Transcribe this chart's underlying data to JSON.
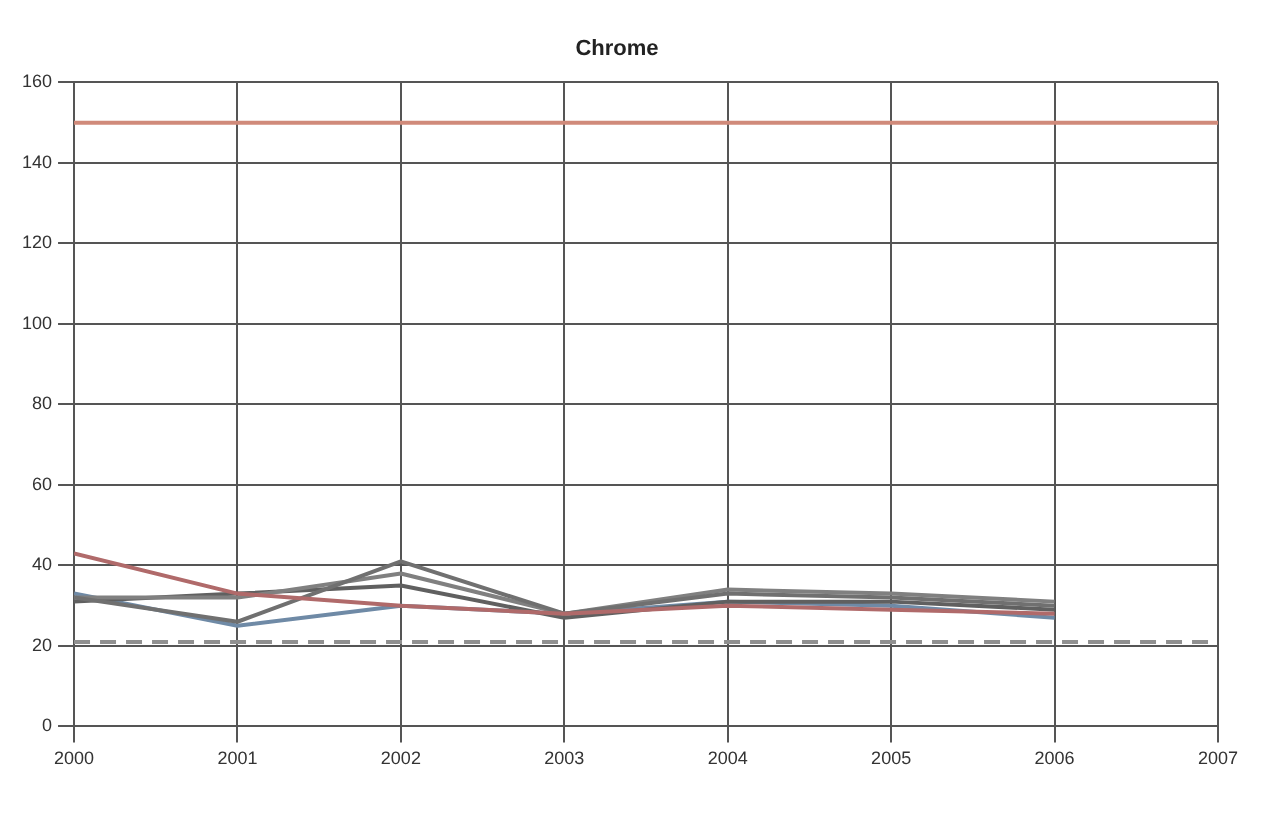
{
  "chart_data": {
    "type": "line",
    "title": "Chrome",
    "x": [
      2000,
      2001,
      2002,
      2003,
      2004,
      2005,
      2006
    ],
    "series": [
      {
        "color": "#b06a6a",
        "values": [
          43,
          33,
          30,
          28,
          30,
          29,
          28
        ]
      },
      {
        "color": "#707070",
        "values": [
          32,
          26,
          41,
          28,
          33,
          32,
          30
        ]
      },
      {
        "color": "#808080",
        "values": [
          32,
          32,
          38,
          28,
          34,
          33,
          31
        ]
      },
      {
        "color": "#606060",
        "values": [
          31,
          33,
          35,
          27,
          31,
          31,
          29
        ]
      },
      {
        "color": "#6f8aa6",
        "values": [
          33,
          25,
          30,
          28,
          31,
          30,
          27
        ]
      }
    ],
    "xlim": [
      2000,
      2007
    ],
    "xticks": [
      2000,
      2001,
      2002,
      2003,
      2004,
      2005,
      2006,
      2007
    ],
    "ylim": [
      0,
      160
    ],
    "yticks": [
      0,
      20,
      40,
      60,
      80,
      100,
      120,
      140,
      160
    ],
    "ref_lines": [
      {
        "axis": "y",
        "value": 150,
        "color": "#d08a7a"
      },
      {
        "axis": "y",
        "value": 21,
        "color": "#909090",
        "line_style": "dashed"
      }
    ],
    "grid": true,
    "legend": false,
    "marker": "none",
    "line_style": "solid"
  }
}
